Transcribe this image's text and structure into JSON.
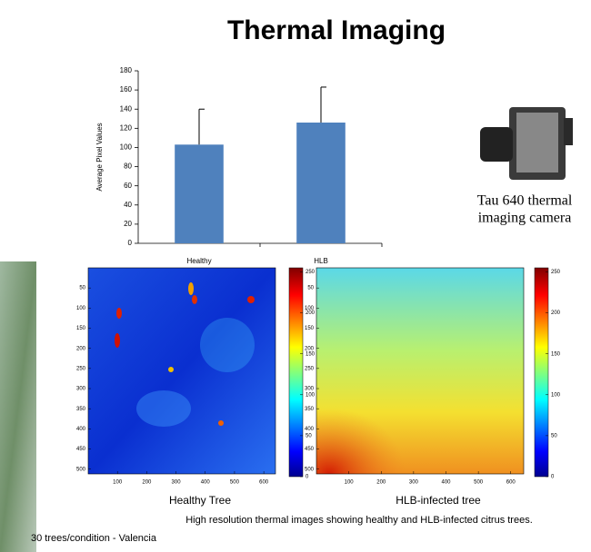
{
  "title": "Thermal Imaging",
  "camera_caption": [
    "Tau 640 thermal",
    "imaging camera"
  ],
  "caption": "High resolution thermal images showing healthy and HLB-infected citrus trees.",
  "footnote": "30 trees/condition - Valencia",
  "chart_data": [
    {
      "type": "bar",
      "ylabel": "Average Pixel Values",
      "categories": [
        "Healthy",
        "HLB"
      ],
      "values": [
        103,
        126
      ],
      "errors": [
        37,
        37
      ],
      "color": "#4f81bd",
      "ylim": [
        0,
        180
      ],
      "yticks": [
        0,
        20,
        40,
        60,
        80,
        100,
        120,
        140,
        160,
        180
      ]
    },
    {
      "type": "heatmap",
      "xlabel": "Healthy Tree",
      "xlim": [
        0,
        640
      ],
      "xticks": [
        100,
        200,
        300,
        400,
        500,
        600
      ],
      "ylim": [
        0,
        512
      ],
      "yticks": [
        50,
        100,
        150,
        200,
        250,
        300,
        350,
        400,
        450,
        500
      ],
      "clim": [
        0,
        255
      ],
      "cticks": [
        0,
        50,
        100,
        150,
        200,
        250
      ]
    },
    {
      "type": "heatmap",
      "xlabel": "HLB-infected tree",
      "xlim": [
        0,
        640
      ],
      "xticks": [
        100,
        200,
        300,
        400,
        500,
        600
      ],
      "ylim": [
        0,
        512
      ],
      "yticks": [
        50,
        100,
        150,
        200,
        250,
        300,
        350,
        400,
        450,
        500
      ],
      "clim": [
        0,
        255
      ],
      "cticks": [
        0,
        50,
        100,
        150,
        200,
        250
      ]
    }
  ]
}
